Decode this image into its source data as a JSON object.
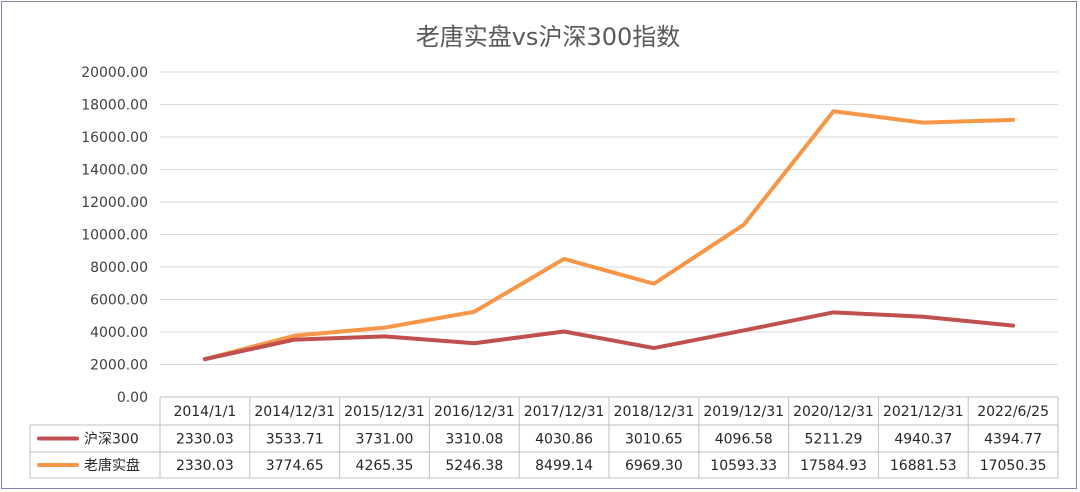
{
  "chart_data": {
    "type": "line",
    "title": "老唐实盘vs沪深300指数",
    "categories": [
      "2014/1/1",
      "2014/12/31",
      "2015/12/31",
      "2016/12/31",
      "2017/12/31",
      "2018/12/31",
      "2019/12/31",
      "2020/12/31",
      "2021/12/31",
      "2022/6/25"
    ],
    "series": [
      {
        "name": "沪深300",
        "color": "#c0504d",
        "values": [
          2330.03,
          3533.71,
          3731.0,
          3310.08,
          4030.86,
          3010.65,
          4096.58,
          5211.29,
          4940.37,
          4394.77
        ],
        "labels": [
          "2330.03",
          "3533.71",
          "3731.00",
          "3310.08",
          "4030.86",
          "3010.65",
          "4096.58",
          "5211.29",
          "4940.37",
          "4394.77"
        ]
      },
      {
        "name": "老唐实盘",
        "color": "#f79646",
        "values": [
          2330.03,
          3774.65,
          4265.35,
          5246.38,
          8499.14,
          6969.3,
          10593.33,
          17584.93,
          16881.53,
          17050.35
        ],
        "labels": [
          "2330.03",
          "3774.65",
          "4265.35",
          "5246.38",
          "8499.14",
          "6969.30",
          "10593.33",
          "17584.93",
          "16881.53",
          "17050.35"
        ]
      }
    ],
    "yticks": [
      "0.00",
      "2000.00",
      "4000.00",
      "6000.00",
      "8000.00",
      "10000.00",
      "12000.00",
      "14000.00",
      "16000.00",
      "18000.00",
      "20000.00"
    ],
    "ylim": [
      0,
      20000
    ],
    "grid": true,
    "legend": "data-table"
  }
}
